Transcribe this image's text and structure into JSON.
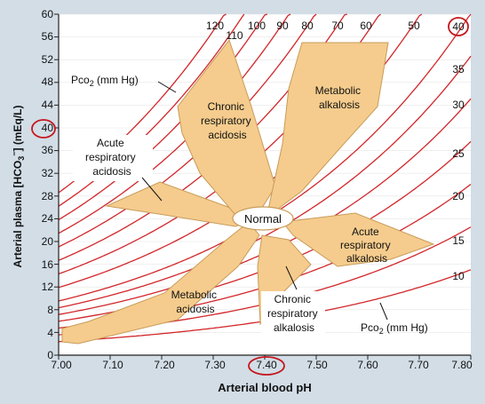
{
  "axes": {
    "x": {
      "label": "Arterial blood pH",
      "min": 7.0,
      "max": 7.8,
      "ticks": [
        "7.00",
        "7.10",
        "7.20",
        "7.30",
        "7.40",
        "7.50",
        "7.60",
        "7.70",
        "7.80"
      ]
    },
    "y": {
      "label_prefix": "Arterial plasma [HCO",
      "label_sub": "3",
      "label_sup": "−",
      "label_suffix": "] (mEq/L)",
      "min": 0,
      "max": 60,
      "ticks": [
        "0",
        "4",
        "8",
        "12",
        "16",
        "20",
        "24",
        "28",
        "32",
        "36",
        "40",
        "44",
        "48",
        "52",
        "56",
        "60"
      ]
    }
  },
  "pco2_isobars": [
    120,
    110,
    100,
    90,
    80,
    70,
    60,
    50,
    40,
    35,
    30,
    25,
    20,
    15,
    10
  ],
  "pco2_top_labels": [
    "120",
    "110",
    "100",
    "90",
    "80",
    "70",
    "60",
    "50",
    "40"
  ],
  "pco2_right_labels": [
    "35",
    "30",
    "25",
    "20",
    "15",
    "10"
  ],
  "pco2_labels": {
    "upper": {
      "prefix": "Pco",
      "sub": "2",
      "suffix": " (mm Hg)"
    },
    "lower": {
      "prefix": "Pco",
      "sub": "2",
      "suffix": " (mm Hg)"
    }
  },
  "regions": {
    "chronic_acidosis": [
      "Chronic",
      "respiratory",
      "acidosis"
    ],
    "metabolic_alkalosis": [
      "Metabolic",
      "alkalosis"
    ],
    "acute_acidosis": [
      "Acute",
      "respiratory",
      "acidosis"
    ],
    "normal": "Normal",
    "acute_alkalosis": [
      "Acute",
      "respiratory",
      "alkalosis"
    ],
    "metabolic_acidosis": [
      "Metabolic",
      "acidosis"
    ],
    "chronic_alkalosis": [
      "Chronic",
      "respiratory",
      "alkalosis"
    ]
  },
  "highlighted": {
    "ph": "7.40",
    "hco3": "40",
    "pco2": "40"
  },
  "colors": {
    "region_fill": "#f5cc8d",
    "region_stroke": "#c89c5a",
    "isobar": "#d2262a",
    "highlight": "#c4161c",
    "background": "#d2dde6",
    "plot": "#ffffff"
  }
}
